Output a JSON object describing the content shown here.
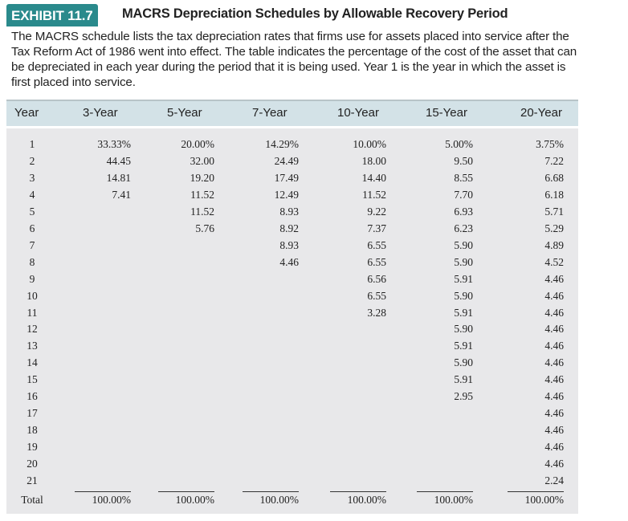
{
  "exhibit": {
    "badge": "EXHIBIT 11.7",
    "title": "MACRS Depreciation Schedules by Allowable Recovery Period",
    "description": "The MACRS schedule lists the tax depreciation rates that firms use for assets placed into service after the Tax Reform Act of 1986 went into effect. The table indicates the percentage of the cost of the asset that can be depreciated in each year during the period that it is being used. Year 1 is the year in which the asset is first placed into service.",
    "accent_color": "#2a8a8c"
  },
  "table": {
    "headers": [
      "Year",
      "3-Year",
      "5-Year",
      "7-Year",
      "10-Year",
      "15-Year",
      "20-Year"
    ],
    "rows": [
      [
        "1",
        "33.33%",
        "20.00%",
        "14.29%",
        "10.00%",
        "5.00%",
        "3.75%"
      ],
      [
        "2",
        "44.45",
        "32.00",
        "24.49",
        "18.00",
        "9.50",
        "7.22"
      ],
      [
        "3",
        "14.81",
        "19.20",
        "17.49",
        "14.40",
        "8.55",
        "6.68"
      ],
      [
        "4",
        "7.41",
        "11.52",
        "12.49",
        "11.52",
        "7.70",
        "6.18"
      ],
      [
        "5",
        "",
        "11.52",
        "8.93",
        "9.22",
        "6.93",
        "5.71"
      ],
      [
        "6",
        "",
        "5.76",
        "8.92",
        "7.37",
        "6.23",
        "5.29"
      ],
      [
        "7",
        "",
        "",
        "8.93",
        "6.55",
        "5.90",
        "4.89"
      ],
      [
        "8",
        "",
        "",
        "4.46",
        "6.55",
        "5.90",
        "4.52"
      ],
      [
        "9",
        "",
        "",
        "",
        "6.56",
        "5.91",
        "4.46"
      ],
      [
        "10",
        "",
        "",
        "",
        "6.55",
        "5.90",
        "4.46"
      ],
      [
        "11",
        "",
        "",
        "",
        "3.28",
        "5.91",
        "4.46"
      ],
      [
        "12",
        "",
        "",
        "",
        "",
        "5.90",
        "4.46"
      ],
      [
        "13",
        "",
        "",
        "",
        "",
        "5.91",
        "4.46"
      ],
      [
        "14",
        "",
        "",
        "",
        "",
        "5.90",
        "4.46"
      ],
      [
        "15",
        "",
        "",
        "",
        "",
        "5.91",
        "4.46"
      ],
      [
        "16",
        "",
        "",
        "",
        "",
        "2.95",
        "4.46"
      ],
      [
        "17",
        "",
        "",
        "",
        "",
        "",
        "4.46"
      ],
      [
        "18",
        "",
        "",
        "",
        "",
        "",
        "4.46"
      ],
      [
        "19",
        "",
        "",
        "",
        "",
        "",
        "4.46"
      ],
      [
        "20",
        "",
        "",
        "",
        "",
        "",
        "4.46"
      ],
      [
        "21",
        "",
        "",
        "",
        "",
        "",
        "2.24"
      ]
    ],
    "total": [
      "Total",
      "100.00%",
      "100.00%",
      "100.00%",
      "100.00%",
      "100.00%",
      "100.00%"
    ]
  }
}
